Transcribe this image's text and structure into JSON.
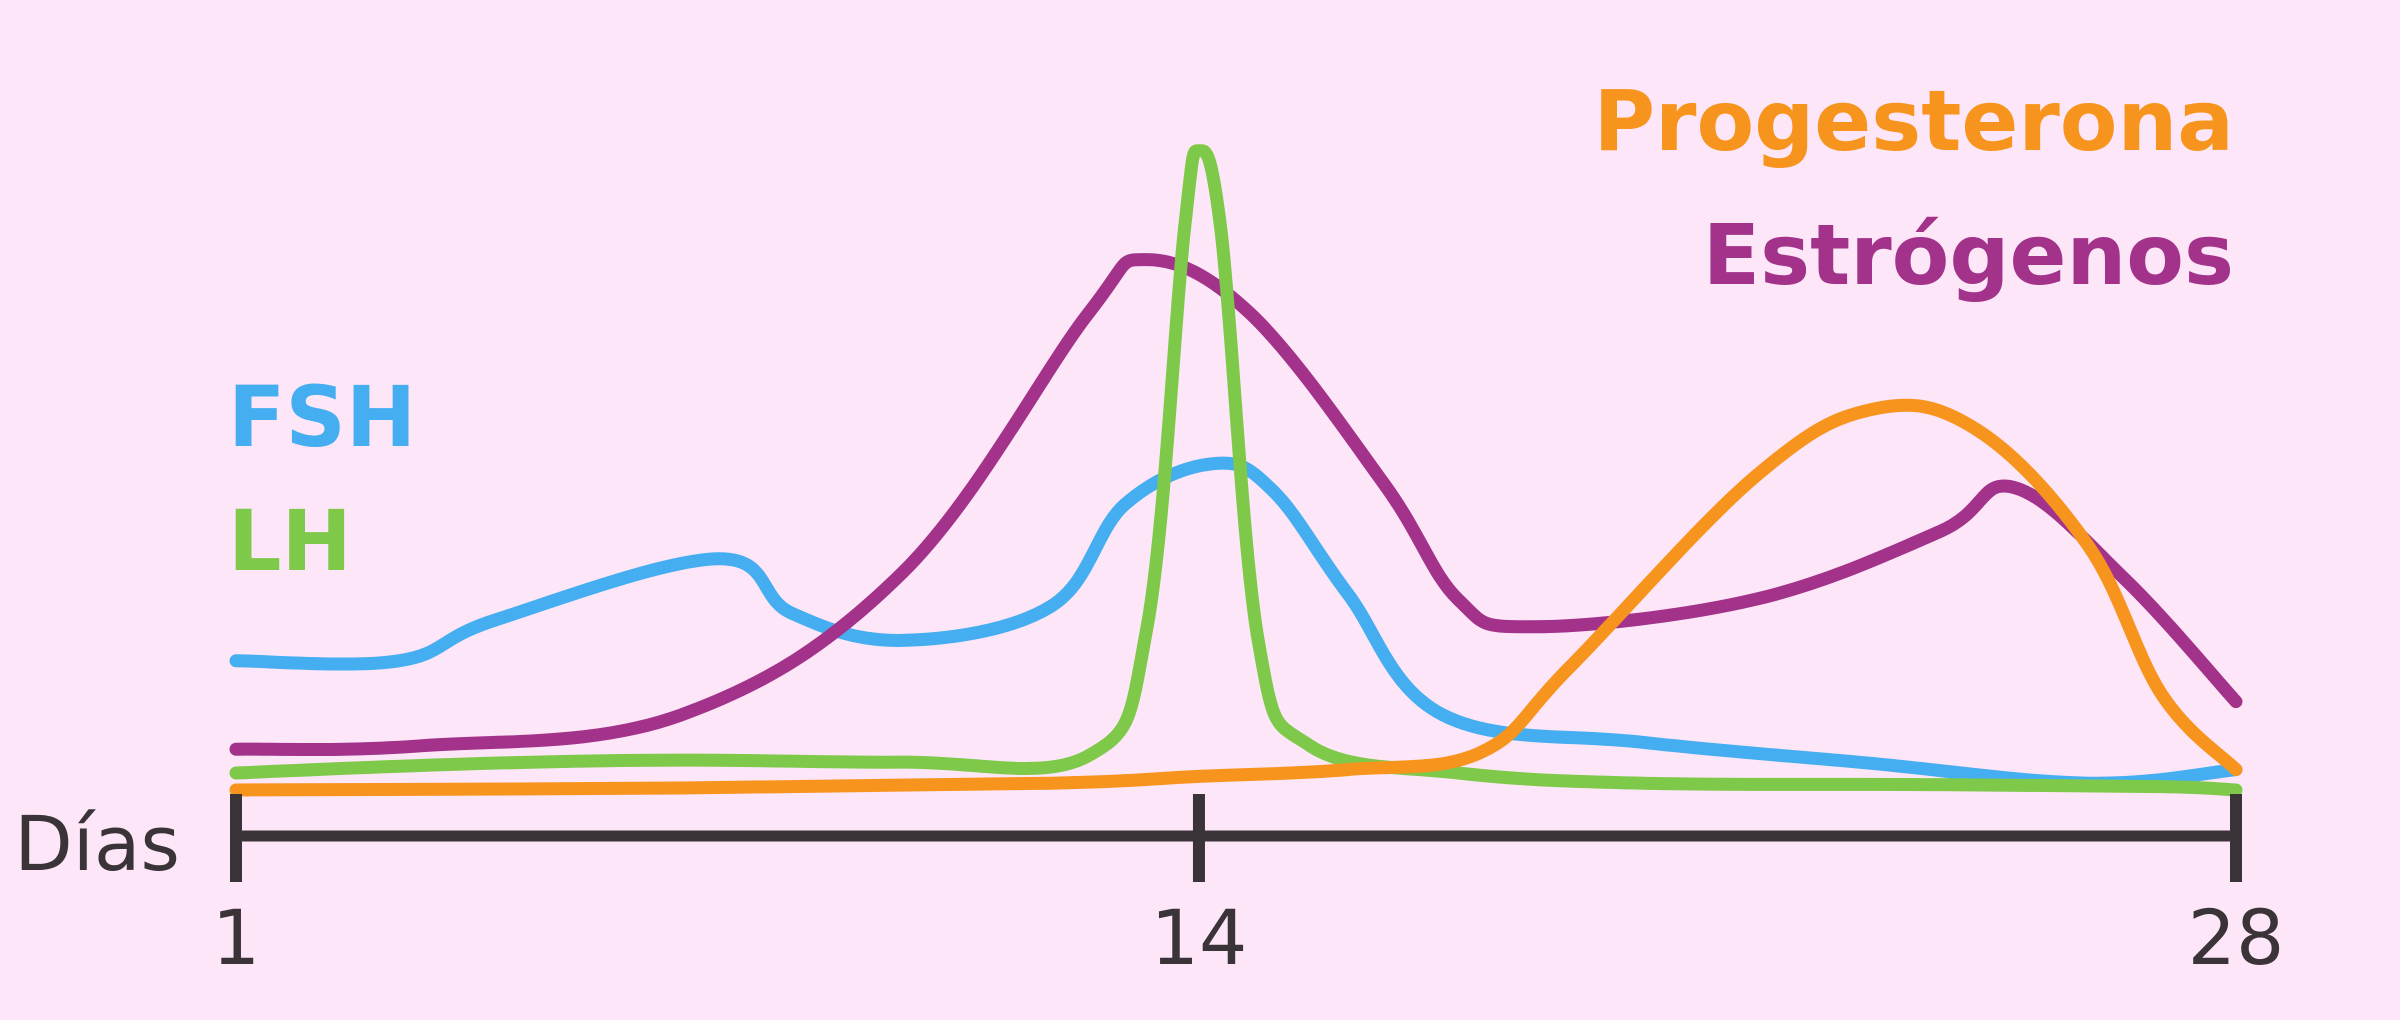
{
  "chart_data": {
    "type": "line",
    "xlabel": "Días",
    "ylabel": "",
    "title": "",
    "xlim": [
      1,
      28
    ],
    "ylim": [
      0,
      100
    ],
    "x_ticks": [
      {
        "value": 1,
        "label": "1"
      },
      {
        "value": 14,
        "label": "14"
      },
      {
        "value": 28,
        "label": "28"
      }
    ],
    "grid": false,
    "legend_placement": "labels beside curves (FSH, LH left; Progesterona, Estrógenos top-right)",
    "series": [
      {
        "name": "FSH",
        "color": "#45aef0",
        "points": [
          [
            1,
            19
          ],
          [
            3.2,
            19
          ],
          [
            4.5,
            25
          ],
          [
            7.5,
            34
          ],
          [
            8.5,
            26
          ],
          [
            10,
            22
          ],
          [
            12,
            27
          ],
          [
            13,
            42
          ],
          [
            14.2,
            48
          ],
          [
            15,
            44
          ],
          [
            16,
            29
          ],
          [
            17.3,
            11
          ],
          [
            20,
            7
          ],
          [
            23,
            4
          ],
          [
            26,
            1
          ],
          [
            28,
            3
          ]
        ]
      },
      {
        "name": "LH",
        "color": "#7ec94a",
        "points": [
          [
            1,
            2.5
          ],
          [
            4,
            3.8
          ],
          [
            7,
            4.4
          ],
          [
            10,
            4.1
          ],
          [
            12.5,
            5
          ],
          [
            13.3,
            24
          ],
          [
            13.8,
            82
          ],
          [
            14,
            94
          ],
          [
            14.3,
            82
          ],
          [
            14.8,
            22
          ],
          [
            15.5,
            6.5
          ],
          [
            17.5,
            2.5
          ],
          [
            20,
            1
          ],
          [
            24,
            0.8
          ],
          [
            27,
            0.5
          ],
          [
            28,
            0
          ]
        ]
      },
      {
        "name": "Estrógenos",
        "color": "#a2328a",
        "points": [
          [
            1,
            6
          ],
          [
            3.5,
            6.5
          ],
          [
            7,
            11
          ],
          [
            10,
            32
          ],
          [
            12.5,
            70
          ],
          [
            13.3,
            78
          ],
          [
            14.7,
            70
          ],
          [
            16.5,
            45
          ],
          [
            17.5,
            28
          ],
          [
            18.5,
            24
          ],
          [
            21.5,
            28
          ],
          [
            24,
            38
          ],
          [
            25,
            44.5
          ],
          [
            26.5,
            31
          ],
          [
            28,
            13
          ]
        ]
      },
      {
        "name": "Progesterona",
        "color": "#f7941d",
        "points": [
          [
            1,
            0
          ],
          [
            7,
            0.3
          ],
          [
            12,
            1
          ],
          [
            14,
            2
          ],
          [
            16,
            3
          ],
          [
            17.8,
            5.5
          ],
          [
            19,
            18
          ],
          [
            21.5,
            46
          ],
          [
            23.1,
            56
          ],
          [
            24.5,
            53
          ],
          [
            26,
            36
          ],
          [
            27,
            14
          ],
          [
            28,
            3
          ]
        ]
      }
    ],
    "legend": [
      {
        "name": "FSH",
        "color": "#45aef0"
      },
      {
        "name": "LH",
        "color": "#7ec94a"
      },
      {
        "name": "Progesterona",
        "color": "#f7941d"
      },
      {
        "name": "Estrógenos",
        "color": "#a2328a"
      }
    ],
    "axis_color": "#3a3338",
    "background_color": "#fde6f7"
  }
}
